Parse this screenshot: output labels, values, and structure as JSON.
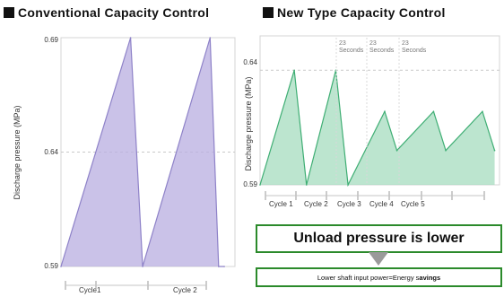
{
  "chart_data": [
    {
      "type": "area",
      "title": "Conventional Capacity Control",
      "ylabel": "Discharge pressure (MPa)",
      "ylim": [
        0.59,
        0.69
      ],
      "yticks": [
        "0.69",
        "0.64",
        "0.59"
      ],
      "categories": [
        "Cycle1",
        "Cycle 2"
      ],
      "reference_line": 0.64,
      "grid": false,
      "series": [
        {
          "x": [
            0,
            0.98,
            1.15,
            2.1,
            2.22,
            2.3
          ],
          "y": [
            0.59,
            0.69,
            0.59,
            0.69,
            0.59,
            0.59
          ]
        }
      ],
      "xlim": [
        0,
        2.45
      ],
      "fill": "#b8aee0",
      "stroke": "#8e82c8"
    },
    {
      "type": "area",
      "title": "New Type Capacity Control",
      "ylabel": "Discharge pressure (MPa)",
      "ylim": [
        0.59,
        0.655
      ],
      "yticks": [
        "0.64",
        "0.59"
      ],
      "categories": [
        "Cycle 1",
        "Cycle 2",
        "Cycle 3",
        "Cycle 4",
        "Cycle 5"
      ],
      "reference_line": 0.64,
      "grid": false,
      "annotations": [
        "23 Seconds",
        "23 Seconds",
        "23 Seconds"
      ],
      "series": [
        {
          "x": [
            0,
            0.7,
            0.95,
            1.55,
            1.8,
            2.55,
            2.8,
            3.55,
            3.8,
            4.55,
            4.8
          ],
          "y": [
            0.59,
            0.64,
            0.59,
            0.64,
            0.59,
            0.622,
            0.605,
            0.622,
            0.605,
            0.622,
            0.605
          ]
        }
      ],
      "xlim": [
        0,
        4.9
      ],
      "fill": "#a5dcbf",
      "stroke": "#3fae74"
    }
  ],
  "callouts": {
    "unload": "Unload pressure is lower",
    "energy_prefix": "Lower shaft input power=Energy s",
    "energy_bold": "avings"
  }
}
